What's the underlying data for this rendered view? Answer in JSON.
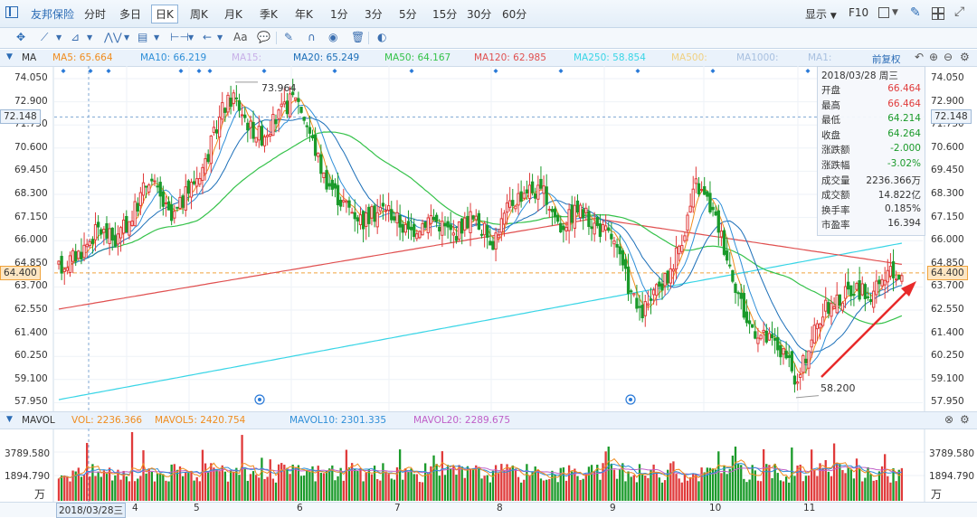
{
  "toolbar": {
    "brand": "友邦保险",
    "periods": [
      "分时",
      "多日",
      "日K",
      "周K",
      "月K",
      "季K",
      "年K",
      "1分",
      "3分",
      "5分",
      "15分",
      "30分",
      "60分"
    ],
    "active_period": "日K",
    "display_label": "显示",
    "f10_label": "F10"
  },
  "drawtools": {
    "text_tool": "Aa"
  },
  "ma_bar": {
    "title": "MA",
    "ma5": "MA5: 65.664",
    "ma10": "MA10: 66.219",
    "ma15": "MA15:",
    "ma20": "MA20: 65.249",
    "ma50": "MA50: 64.167",
    "ma120": "MA120: 62.985",
    "ma250": "MA250: 58.854",
    "ma500": "MA500:",
    "ma1000": "MA1000:",
    "ma1": "MA1:",
    "adjust": "前复权"
  },
  "price_axis": {
    "ticks": [
      "74.050",
      "72.900",
      "71.750",
      "70.600",
      "69.450",
      "68.300",
      "67.150",
      "66.000",
      "64.850",
      "63.700",
      "62.550",
      "61.400",
      "60.250",
      "59.100",
      "57.950"
    ],
    "left_highlight": "72.148",
    "right_highlight": "72.148",
    "current_left": "64.400",
    "current_right": "64.400"
  },
  "annotations": {
    "high": "73.964",
    "low": "58.200"
  },
  "info_panel": {
    "date": "2018/03/28 周三",
    "rows": [
      {
        "k": "开盘",
        "v": "66.464",
        "color": "#e03b3b"
      },
      {
        "k": "最高",
        "v": "66.464",
        "color": "#e03b3b"
      },
      {
        "k": "最低",
        "v": "64.214",
        "color": "#1a9a2a"
      },
      {
        "k": "收盘",
        "v": "64.264",
        "color": "#1a9a2a"
      },
      {
        "k": "涨跌额",
        "v": "-2.000",
        "color": "#1a9a2a"
      },
      {
        "k": "涨跌幅",
        "v": "-3.02%",
        "color": "#1a9a2a"
      },
      {
        "k": "成交量",
        "v": "2236.366万",
        "color": "#333333"
      },
      {
        "k": "成交额",
        "v": "14.822亿",
        "color": "#333333"
      },
      {
        "k": "换手率",
        "v": "0.185%",
        "color": "#333333"
      },
      {
        "k": "市盈率",
        "v": "16.394",
        "color": "#333333"
      }
    ]
  },
  "vol_bar": {
    "title": "MAVOL",
    "vol": "VOL: 2236.366",
    "mavol5": "MAVOL5: 2420.754",
    "mavol10": "MAVOL10: 2301.335",
    "mavol20": "MAVOL20: 2289.675"
  },
  "vol_axis": {
    "top": "3789.580",
    "mid": "1894.790",
    "unit": "万"
  },
  "x_axis": {
    "labels": [
      "2018/03/28三",
      "4",
      "5",
      "6",
      "7",
      "8",
      "9",
      "10",
      "11"
    ]
  },
  "colors": {
    "up": "#e03b3b",
    "down": "#1a9a2a",
    "ma5": "#f08c1e",
    "ma10": "#2f8fd8",
    "ma20": "#1c6fb8",
    "ma50": "#35c24a",
    "ma120": "#e05050",
    "ma250": "#39d5e6",
    "mavol5": "#f08c1e",
    "mavol10": "#2f8fd8",
    "mavol20": "#c060c8"
  }
}
